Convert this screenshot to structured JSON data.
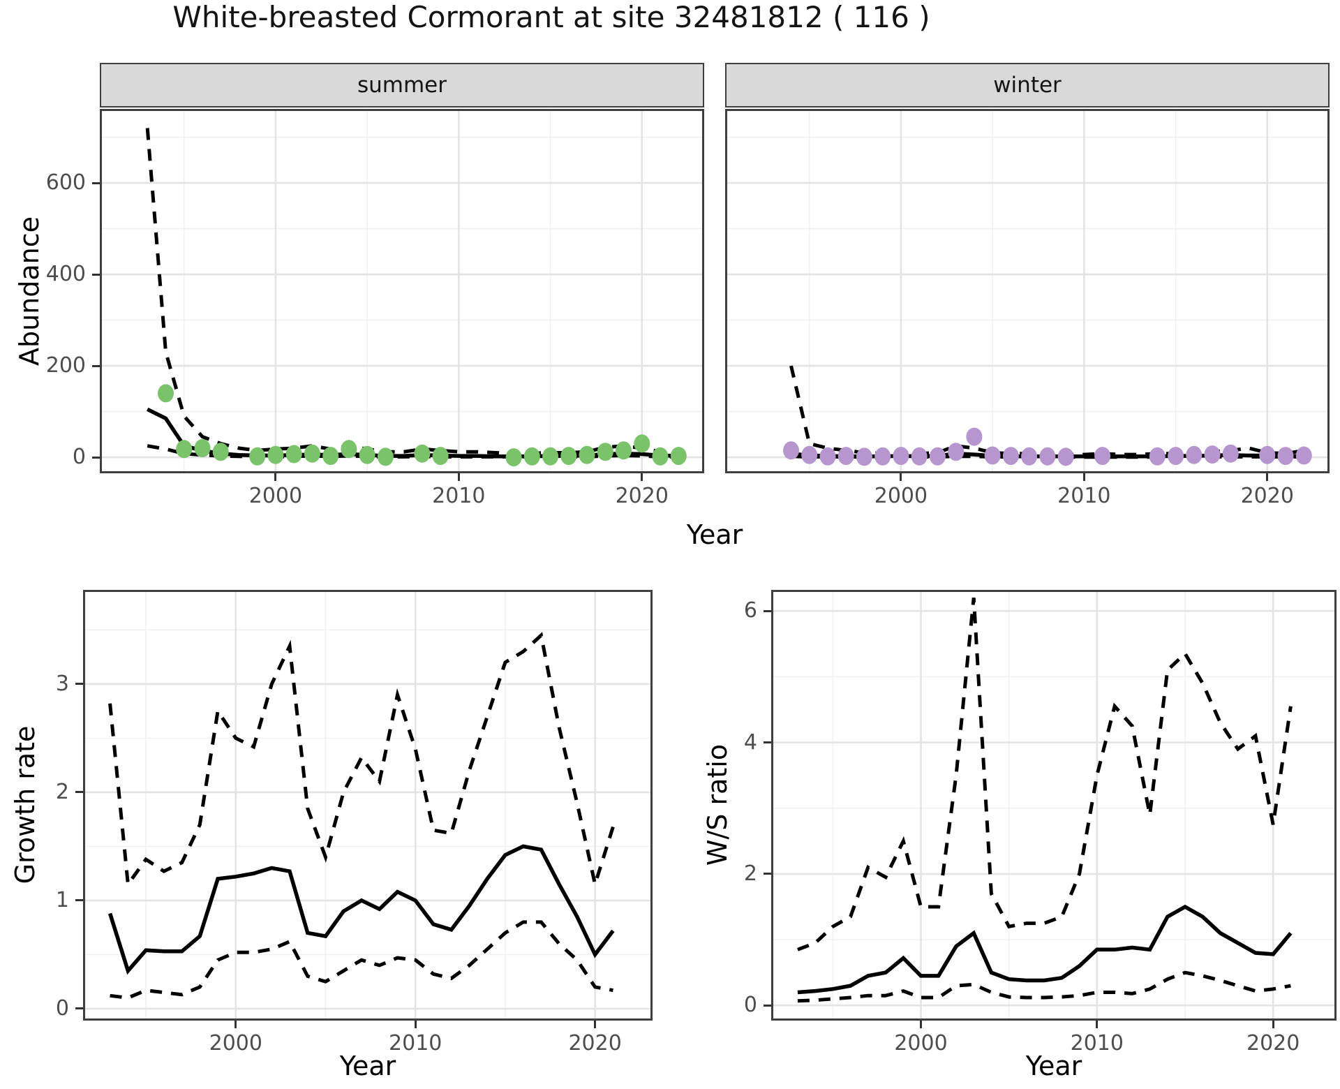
{
  "labels": {
    "title": "White-breasted Cormorant at site 32481812 ( 116 )",
    "y_axis_top": "Abundance",
    "x_axis": "Year",
    "y_axis_growth": "Growth rate",
    "y_axis_ratio": "W/S ratio",
    "facet_summer": "summer",
    "facet_winter": "winter"
  },
  "colors": {
    "summer_points": "#7AC36B",
    "winter_points": "#B795CE",
    "line": "#000000",
    "strip_bg": "#D9D9D9",
    "grid_major": "#E4E4E4",
    "grid_minor": "#F2F2F2",
    "panel_border": "#3f3f3f",
    "tick_text": "#4d4d4d"
  },
  "chart_data": [
    {
      "id": "summer",
      "type": "line",
      "facet": "summer",
      "xlabel": "Year",
      "ylabel": "Abundance",
      "xlim": [
        1990.4,
        2023.4
      ],
      "ylim": [
        -35,
        762
      ],
      "xticks": [
        2000,
        2010,
        2020
      ],
      "xticks_minor": [
        1995,
        2005,
        2015
      ],
      "yticks": [
        0,
        200,
        400,
        600
      ],
      "yticks_minor": [
        100,
        300,
        500,
        700
      ],
      "show_ytick_labels": true,
      "show_xtick_labels": true,
      "series": [
        {
          "name": "upper_ci",
          "style": "dashed",
          "x": [
            1993,
            1994,
            1995,
            1996,
            1997,
            1998,
            1999,
            2000,
            2001,
            2002,
            2003,
            2004,
            2005,
            2006,
            2007,
            2008,
            2009,
            2010,
            2011,
            2012,
            2013,
            2014,
            2015,
            2016,
            2017,
            2018,
            2019,
            2020,
            2021,
            2022
          ],
          "y": [
            720,
            230,
            90,
            45,
            30,
            20,
            15,
            18,
            20,
            25,
            18,
            25,
            18,
            12,
            12,
            18,
            15,
            12,
            12,
            10,
            8,
            9,
            10,
            10,
            12,
            22,
            25,
            20,
            12,
            10
          ]
        },
        {
          "name": "median_fit",
          "style": "solid",
          "x": [
            1993,
            1994,
            1995,
            1996,
            1997,
            1998,
            1999,
            2000,
            2001,
            2002,
            2003,
            2004,
            2005,
            2006,
            2007,
            2008,
            2009,
            2010,
            2011,
            2012,
            2013,
            2014,
            2015,
            2016,
            2017,
            2018,
            2019,
            2020,
            2021,
            2022
          ],
          "y": [
            105,
            85,
            25,
            15,
            8,
            5,
            4,
            4,
            5,
            6,
            5,
            7,
            5,
            3,
            3,
            5,
            4,
            3,
            3,
            2,
            2,
            2,
            3,
            3,
            4,
            7,
            8,
            7,
            4,
            3
          ]
        },
        {
          "name": "lower_ci",
          "style": "dashed",
          "x": [
            1993,
            1994,
            1995,
            1996,
            1997,
            1998,
            1999,
            2000,
            2001,
            2002,
            2003,
            2004,
            2005,
            2006,
            2007,
            2008,
            2009,
            2010,
            2011,
            2012,
            2013,
            2014,
            2015,
            2016,
            2017,
            2018,
            2019,
            2020,
            2021,
            2022
          ],
          "y": [
            25,
            18,
            8,
            5,
            3,
            2,
            1,
            1,
            2,
            3,
            2,
            3,
            2,
            1,
            1,
            2,
            1,
            1,
            1,
            1,
            1,
            1,
            1,
            1,
            1,
            3,
            4,
            3,
            1,
            1
          ]
        }
      ],
      "points": {
        "name": "observed_abundance_summer",
        "color": "#7AC36B",
        "x": [
          1994,
          1995,
          1996,
          1997,
          1999,
          2000,
          2001,
          2002,
          2003,
          2004,
          2005,
          2006,
          2008,
          2009,
          2013,
          2014,
          2015,
          2016,
          2017,
          2018,
          2019,
          2020,
          2021,
          2022
        ],
        "y": [
          140,
          18,
          20,
          12,
          2,
          5,
          7,
          8,
          3,
          18,
          5,
          1,
          8,
          3,
          0,
          2,
          2,
          3,
          5,
          12,
          15,
          30,
          2,
          3
        ]
      }
    },
    {
      "id": "winter",
      "type": "line",
      "facet": "winter",
      "xlabel": "Year",
      "ylabel": "Abundance",
      "xlim": [
        1990.4,
        2023.4
      ],
      "ylim": [
        -35,
        762
      ],
      "xticks": [
        2000,
        2010,
        2020
      ],
      "xticks_minor": [
        1995,
        2005,
        2015
      ],
      "yticks": [
        0,
        200,
        400,
        600
      ],
      "yticks_minor": [
        100,
        300,
        500,
        700
      ],
      "show_ytick_labels": false,
      "show_xtick_labels": true,
      "series": [
        {
          "name": "upper_ci",
          "style": "dashed",
          "x": [
            1994,
            1995,
            1996,
            1997,
            1998,
            1999,
            2000,
            2001,
            2002,
            2003,
            2004,
            2005,
            2006,
            2007,
            2008,
            2009,
            2010,
            2011,
            2012,
            2013,
            2014,
            2015,
            2016,
            2017,
            2018,
            2019,
            2020,
            2021,
            2022
          ],
          "y": [
            200,
            30,
            20,
            15,
            10,
            8,
            10,
            8,
            10,
            25,
            20,
            10,
            8,
            8,
            8,
            6,
            6,
            8,
            6,
            6,
            8,
            8,
            10,
            12,
            15,
            20,
            10,
            8,
            15
          ]
        },
        {
          "name": "median_fit",
          "style": "solid",
          "x": [
            1994,
            1995,
            1996,
            1997,
            1998,
            1999,
            2000,
            2001,
            2002,
            2003,
            2004,
            2005,
            2006,
            2007,
            2008,
            2009,
            2010,
            2011,
            2012,
            2013,
            2014,
            2015,
            2016,
            2017,
            2018,
            2019,
            2020,
            2021,
            2022
          ],
          "y": [
            8,
            4,
            3,
            2,
            2,
            2,
            3,
            2,
            3,
            8,
            6,
            3,
            2,
            2,
            2,
            2,
            2,
            2,
            2,
            2,
            2,
            3,
            3,
            4,
            5,
            4,
            4,
            3,
            3
          ]
        },
        {
          "name": "lower_ci",
          "style": "dashed",
          "x": [
            1994,
            1995,
            1996,
            1997,
            1998,
            1999,
            2000,
            2001,
            2002,
            2003,
            2004,
            2005,
            2006,
            2007,
            2008,
            2009,
            2010,
            2011,
            2012,
            2013,
            2014,
            2015,
            2016,
            2017,
            2018,
            2019,
            2020,
            2021,
            2022
          ],
          "y": [
            2,
            1,
            1,
            1,
            0.5,
            0.5,
            1,
            0.5,
            1,
            2,
            2,
            1,
            0.5,
            0.5,
            0.5,
            0.5,
            0.5,
            0.5,
            0.5,
            0.5,
            0.5,
            1,
            1,
            1,
            1,
            1,
            1,
            1,
            1
          ]
        }
      ],
      "points": {
        "name": "observed_abundance_winter",
        "color": "#B795CE",
        "x": [
          1994,
          1995,
          1996,
          1997,
          1998,
          1999,
          2000,
          2001,
          2002,
          2003,
          2004,
          2005,
          2006,
          2007,
          2008,
          2009,
          2011,
          2014,
          2015,
          2016,
          2017,
          2018,
          2020,
          2021,
          2022
        ],
        "y": [
          15,
          5,
          2,
          3,
          1,
          2,
          3,
          2,
          2,
          12,
          45,
          4,
          3,
          2,
          2,
          1,
          3,
          2,
          3,
          5,
          6,
          8,
          5,
          3,
          4
        ]
      }
    },
    {
      "id": "growth",
      "type": "line",
      "facet": null,
      "xlabel": "Year",
      "ylabel": "Growth rate",
      "xlim": [
        1991.5,
        2023.2
      ],
      "ylim": [
        -0.11,
        3.87
      ],
      "xticks": [
        2000,
        2010,
        2020
      ],
      "xticks_minor": [
        1995,
        2005,
        2015
      ],
      "yticks": [
        0,
        1,
        2,
        3
      ],
      "yticks_minor": [
        0.5,
        1.5,
        2.5,
        3.5
      ],
      "show_ytick_labels": true,
      "show_xtick_labels": true,
      "series": [
        {
          "name": "upper_ci",
          "style": "dashed",
          "x": [
            1993,
            1994,
            1995,
            1996,
            1997,
            1998,
            1999,
            2000,
            2001,
            2002,
            2003,
            2004,
            2005,
            2006,
            2007,
            2008,
            2009,
            2010,
            2011,
            2012,
            2013,
            2014,
            2015,
            2016,
            2017,
            2018,
            2019,
            2020,
            2021
          ],
          "y": [
            2.82,
            1.15,
            1.38,
            1.27,
            1.35,
            1.7,
            2.75,
            2.5,
            2.42,
            3.0,
            3.35,
            1.85,
            1.4,
            2.0,
            2.32,
            2.1,
            2.9,
            2.4,
            1.65,
            1.62,
            2.2,
            2.7,
            3.2,
            3.3,
            3.45,
            2.6,
            1.9,
            1.15,
            1.68
          ]
        },
        {
          "name": "median_growth_rate",
          "style": "solid",
          "x": [
            1993,
            1994,
            1995,
            1996,
            1997,
            1998,
            1999,
            2000,
            2001,
            2002,
            2003,
            2004,
            2005,
            2006,
            2007,
            2008,
            2009,
            2010,
            2011,
            2012,
            2013,
            2014,
            2015,
            2016,
            2017,
            2018,
            2019,
            2020,
            2021
          ],
          "y": [
            0.88,
            0.35,
            0.54,
            0.53,
            0.53,
            0.67,
            1.2,
            1.22,
            1.25,
            1.3,
            1.27,
            0.7,
            0.67,
            0.9,
            1.0,
            0.92,
            1.08,
            1.0,
            0.78,
            0.73,
            0.95,
            1.2,
            1.42,
            1.5,
            1.47,
            1.15,
            0.85,
            0.5,
            0.72
          ]
        },
        {
          "name": "lower_ci",
          "style": "dashed",
          "x": [
            1993,
            1994,
            1995,
            1996,
            1997,
            1998,
            1999,
            2000,
            2001,
            2002,
            2003,
            2004,
            2005,
            2006,
            2007,
            2008,
            2009,
            2010,
            2011,
            2012,
            2013,
            2014,
            2015,
            2016,
            2017,
            2018,
            2019,
            2020,
            2021
          ],
          "y": [
            0.12,
            0.1,
            0.17,
            0.15,
            0.13,
            0.2,
            0.45,
            0.52,
            0.52,
            0.55,
            0.62,
            0.3,
            0.25,
            0.35,
            0.45,
            0.4,
            0.47,
            0.45,
            0.32,
            0.28,
            0.4,
            0.55,
            0.7,
            0.8,
            0.8,
            0.6,
            0.45,
            0.2,
            0.17
          ]
        }
      ],
      "points": null
    },
    {
      "id": "ratio",
      "type": "line",
      "facet": null,
      "xlabel": "Year",
      "ylabel": "W/S ratio",
      "xlim": [
        1991.5,
        2023.6
      ],
      "ylim": [
        -0.23,
        6.32
      ],
      "xticks": [
        2000,
        2010,
        2020
      ],
      "xticks_minor": [
        1995,
        2005,
        2015
      ],
      "yticks": [
        0,
        2,
        4,
        6
      ],
      "yticks_minor": [
        1,
        3,
        5
      ],
      "show_ytick_labels": true,
      "show_xtick_labels": true,
      "series": [
        {
          "name": "upper_ci",
          "style": "dashed",
          "x": [
            1993,
            1994,
            1995,
            1996,
            1997,
            1998,
            1999,
            2000,
            2001,
            2002,
            2003,
            2004,
            2005,
            2006,
            2007,
            2008,
            2009,
            2010,
            2011,
            2012,
            2013,
            2014,
            2015,
            2016,
            2017,
            2018,
            2019,
            2020,
            2021
          ],
          "y": [
            0.85,
            0.95,
            1.2,
            1.35,
            2.1,
            1.95,
            2.5,
            1.5,
            1.5,
            3.5,
            6.2,
            1.7,
            1.2,
            1.25,
            1.25,
            1.35,
            2.0,
            3.5,
            4.55,
            4.25,
            2.9,
            5.1,
            5.35,
            4.9,
            4.3,
            3.9,
            4.1,
            2.75,
            4.55
          ]
        },
        {
          "name": "median_ws_ratio",
          "style": "solid",
          "x": [
            1993,
            1994,
            1995,
            1996,
            1997,
            1998,
            1999,
            2000,
            2001,
            2002,
            2003,
            2004,
            2005,
            2006,
            2007,
            2008,
            2009,
            2010,
            2011,
            2012,
            2013,
            2014,
            2015,
            2016,
            2017,
            2018,
            2019,
            2020,
            2021
          ],
          "y": [
            0.2,
            0.22,
            0.25,
            0.3,
            0.45,
            0.5,
            0.72,
            0.45,
            0.45,
            0.9,
            1.1,
            0.5,
            0.4,
            0.38,
            0.38,
            0.42,
            0.6,
            0.85,
            0.85,
            0.88,
            0.85,
            1.35,
            1.5,
            1.35,
            1.1,
            0.95,
            0.8,
            0.78,
            1.1
          ]
        },
        {
          "name": "lower_ci",
          "style": "dashed",
          "x": [
            1993,
            1994,
            1995,
            1996,
            1997,
            1998,
            1999,
            2000,
            2001,
            2002,
            2003,
            2004,
            2005,
            2006,
            2007,
            2008,
            2009,
            2010,
            2011,
            2012,
            2013,
            2014,
            2015,
            2016,
            2017,
            2018,
            2019,
            2020,
            2021
          ],
          "y": [
            0.07,
            0.08,
            0.1,
            0.12,
            0.15,
            0.15,
            0.22,
            0.12,
            0.12,
            0.3,
            0.32,
            0.2,
            0.13,
            0.12,
            0.12,
            0.13,
            0.15,
            0.2,
            0.2,
            0.18,
            0.25,
            0.4,
            0.5,
            0.45,
            0.38,
            0.3,
            0.22,
            0.25,
            0.3
          ]
        }
      ],
      "points": null
    }
  ]
}
